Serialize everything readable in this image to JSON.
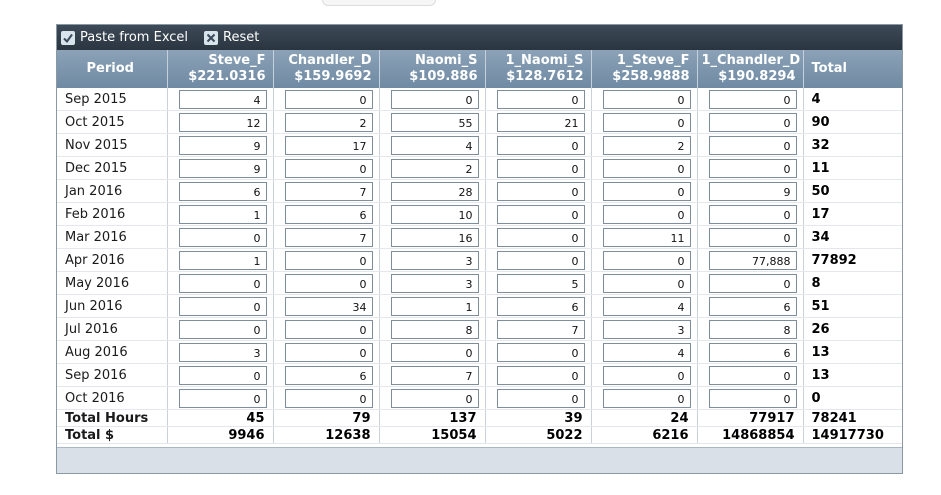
{
  "toolbar": {
    "paste_label": "Paste from Excel",
    "paste_icon": "check-icon",
    "reset_label": "Reset",
    "reset_icon": "x-icon"
  },
  "columns": [
    {
      "key": "period",
      "line1": "Period",
      "line2": ""
    },
    {
      "key": "steve_f",
      "line1": "Steve_F",
      "line2": "$221.0316"
    },
    {
      "key": "chandler_d",
      "line1": "Chandler_D",
      "line2": "$159.9692"
    },
    {
      "key": "naomi_s",
      "line1": "Naomi_S",
      "line2": "$109.886"
    },
    {
      "key": "1_naomi_s",
      "line1": "1_Naomi_S",
      "line2": "$128.7612"
    },
    {
      "key": "1_steve_f",
      "line1": "1_Steve_F",
      "line2": "$258.9888"
    },
    {
      "key": "1_chandler_d",
      "line1": "1_Chandler_D",
      "line2": "$190.8294"
    },
    {
      "key": "total",
      "line1": "Total",
      "line2": ""
    }
  ],
  "rows": [
    {
      "period": "Sep 2015",
      "values": [
        "4",
        "0",
        "0",
        "0",
        "0",
        "0"
      ],
      "total": "4"
    },
    {
      "period": "Oct 2015",
      "values": [
        "12",
        "2",
        "55",
        "21",
        "0",
        "0"
      ],
      "total": "90"
    },
    {
      "period": "Nov 2015",
      "values": [
        "9",
        "17",
        "4",
        "0",
        "2",
        "0"
      ],
      "total": "32"
    },
    {
      "period": "Dec 2015",
      "values": [
        "9",
        "0",
        "2",
        "0",
        "0",
        "0"
      ],
      "total": "11"
    },
    {
      "period": "Jan 2016",
      "values": [
        "6",
        "7",
        "28",
        "0",
        "0",
        "9"
      ],
      "total": "50"
    },
    {
      "period": "Feb 2016",
      "values": [
        "1",
        "6",
        "10",
        "0",
        "0",
        "0"
      ],
      "total": "17"
    },
    {
      "period": "Mar 2016",
      "values": [
        "0",
        "7",
        "16",
        "0",
        "11",
        "0"
      ],
      "total": "34"
    },
    {
      "period": "Apr 2016",
      "values": [
        "1",
        "0",
        "3",
        "0",
        "0",
        "77,888"
      ],
      "total": "77892"
    },
    {
      "period": "May 2016",
      "values": [
        "0",
        "0",
        "3",
        "5",
        "0",
        "0"
      ],
      "total": "8"
    },
    {
      "period": "Jun 2016",
      "values": [
        "0",
        "34",
        "1",
        "6",
        "4",
        "6"
      ],
      "total": "51"
    },
    {
      "period": "Jul 2016",
      "values": [
        "0",
        "0",
        "8",
        "7",
        "3",
        "8"
      ],
      "total": "26"
    },
    {
      "period": "Aug 2016",
      "values": [
        "3",
        "0",
        "0",
        "0",
        "4",
        "6"
      ],
      "total": "13"
    },
    {
      "period": "Sep 2016",
      "values": [
        "0",
        "6",
        "7",
        "0",
        "0",
        "0"
      ],
      "total": "13"
    },
    {
      "period": "Oct 2016",
      "values": [
        "0",
        "0",
        "0",
        "0",
        "0",
        "0"
      ],
      "total": "0"
    }
  ],
  "totals": [
    {
      "label": "Total Hours",
      "values": [
        "45",
        "79",
        "137",
        "39",
        "24",
        "77917"
      ],
      "total": "78241"
    },
    {
      "label": "Total $",
      "values": [
        "9946",
        "12638",
        "15054",
        "5022",
        "6216",
        "14868854"
      ],
      "total": "14917730"
    }
  ]
}
